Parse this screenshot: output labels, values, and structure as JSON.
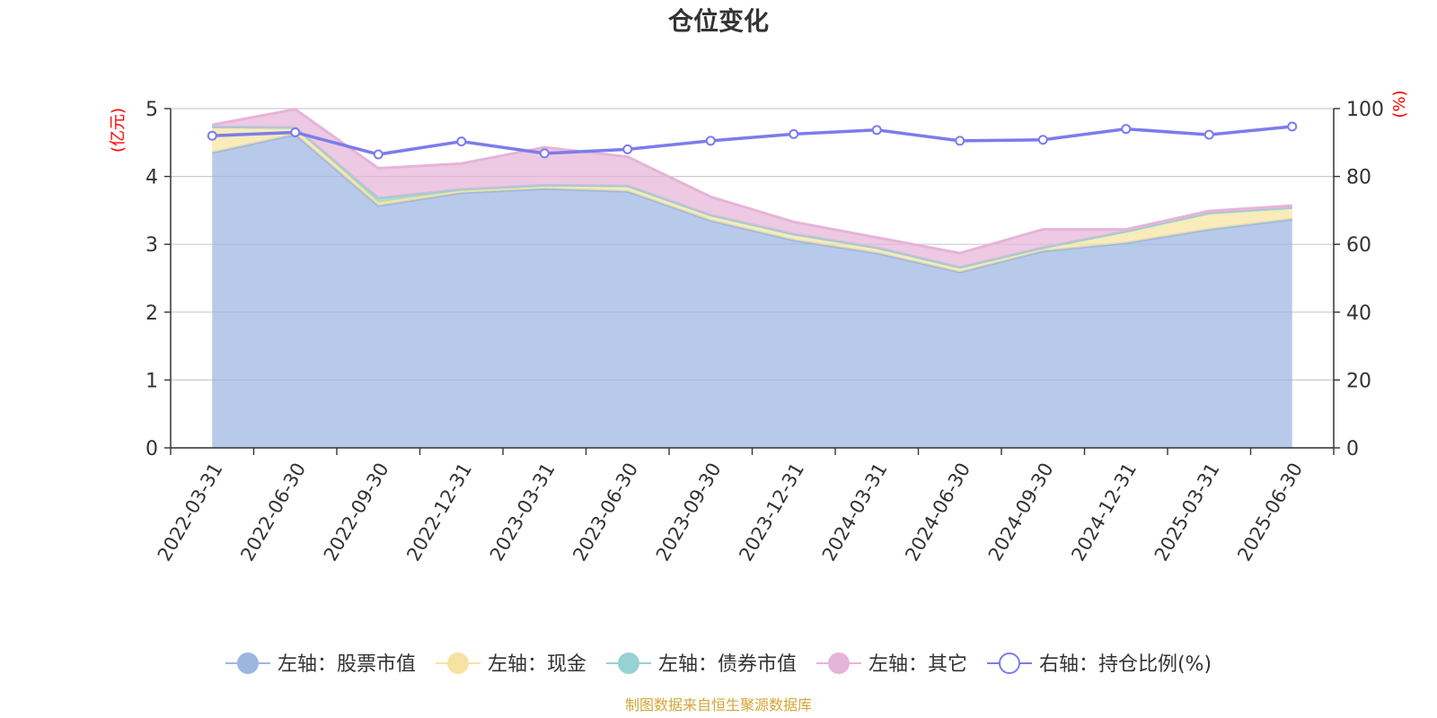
{
  "chart_data": {
    "type": "area",
    "title": "仓位变化",
    "source": "制图数据来自恒生聚源数据库",
    "categories": [
      "2022-03-31",
      "2022-06-30",
      "2022-09-30",
      "2022-12-31",
      "2023-03-31",
      "2023-06-30",
      "2023-09-30",
      "2023-12-31",
      "2024-03-31",
      "2024-06-30",
      "2024-09-30",
      "2024-12-31",
      "2025-03-31",
      "2025-06-30"
    ],
    "y_left": {
      "unit": "(亿元)",
      "range": [
        0,
        5
      ],
      "ticks": [
        "0",
        "1",
        "2",
        "3",
        "4",
        "5"
      ]
    },
    "y_right": {
      "unit": "(%)",
      "range": [
        0,
        100
      ],
      "ticks": [
        "0",
        "20",
        "40",
        "60",
        "80",
        "100"
      ]
    },
    "grid": true,
    "legend_position": "bottom",
    "stacked": true,
    "series": [
      {
        "name": "左轴：股票市值",
        "axis": "left",
        "type": "area",
        "color": "#9db6e0",
        "values": [
          4.35,
          4.62,
          3.57,
          3.76,
          3.82,
          3.78,
          3.35,
          3.06,
          2.87,
          2.59,
          2.9,
          3.02,
          3.22,
          3.37
        ]
      },
      {
        "name": "左轴：现金",
        "axis": "left",
        "type": "area",
        "color": "#f7e3a0",
        "values": [
          0.38,
          0.1,
          0.05,
          0.03,
          0.05,
          0.08,
          0.08,
          0.09,
          0.08,
          0.07,
          0.05,
          0.17,
          0.24,
          0.17
        ]
      },
      {
        "name": "左轴：债券市值",
        "axis": "left",
        "type": "area",
        "color": "#96d2d2",
        "values": [
          0,
          0,
          0.06,
          0.02,
          0,
          0,
          0,
          0,
          0,
          0,
          0,
          0,
          0,
          0
        ]
      },
      {
        "name": "左轴：其它",
        "axis": "left",
        "type": "area",
        "color": "#e6b4d8",
        "values": [
          0.03,
          0.27,
          0.44,
          0.38,
          0.56,
          0.43,
          0.27,
          0.18,
          0.15,
          0.21,
          0.27,
          0.03,
          0.03,
          0.03
        ]
      },
      {
        "name": "右轴：持仓比例(%)",
        "axis": "right",
        "type": "line",
        "color": "#7b7cec",
        "values": [
          92.0,
          93.0,
          86.5,
          90.3,
          86.8,
          88.0,
          90.5,
          92.5,
          93.7,
          90.5,
          90.8,
          94.0,
          92.3,
          94.7
        ]
      }
    ]
  }
}
